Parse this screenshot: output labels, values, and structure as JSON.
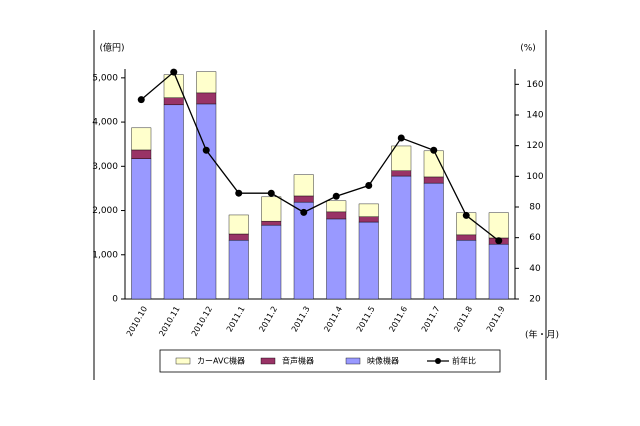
{
  "chart_data": {
    "type": "bar",
    "y_label": "(億円)",
    "y2_label": "(%)",
    "x_label": "(年・月)",
    "categories": [
      "2010.10",
      "2010.11",
      "2010.12",
      "2011.1",
      "2011.2",
      "2011.3",
      "2011.4",
      "2011.5",
      "2011.6",
      "2011.7",
      "2011.8",
      "2011.9"
    ],
    "series": [
      {
        "name": "映像機器",
        "color": "#9999ff",
        "values": [
          3170,
          4390,
          4410,
          1330,
          1670,
          2190,
          1810,
          1740,
          2780,
          2620,
          1330,
          1240
        ]
      },
      {
        "name": "音声機器",
        "color": "#993366",
        "values": [
          200,
          160,
          250,
          140,
          90,
          140,
          160,
          120,
          120,
          140,
          120,
          140
        ]
      },
      {
        "name": "カーAVC機器",
        "color": "#ffffcc",
        "values": [
          500,
          520,
          480,
          430,
          550,
          480,
          250,
          290,
          560,
          590,
          500,
          570
        ]
      },
      {
        "name": "前年比",
        "color": "#000000",
        "type": "line",
        "axis": "y2",
        "values": [
          150,
          168,
          117,
          89,
          89,
          76.5,
          87,
          94,
          125,
          117,
          74.5,
          58
        ]
      }
    ],
    "ylim": [
      0,
      5200
    ],
    "yticks": [
      0,
      {
        "value": 1000,
        "label": "1,000"
      },
      {
        "value": 2000,
        "label": "2,000"
      },
      {
        "value": 3000,
        "label": "3,000"
      },
      {
        "value": 4000,
        "label": "4,000"
      },
      {
        "value": 5000,
        "label": "5,000"
      }
    ],
    "y2lim": [
      20,
      170
    ],
    "y2ticks": [
      20,
      40,
      60,
      80,
      100,
      120,
      140,
      160
    ],
    "legend_order": [
      2,
      1,
      0,
      3
    ]
  }
}
